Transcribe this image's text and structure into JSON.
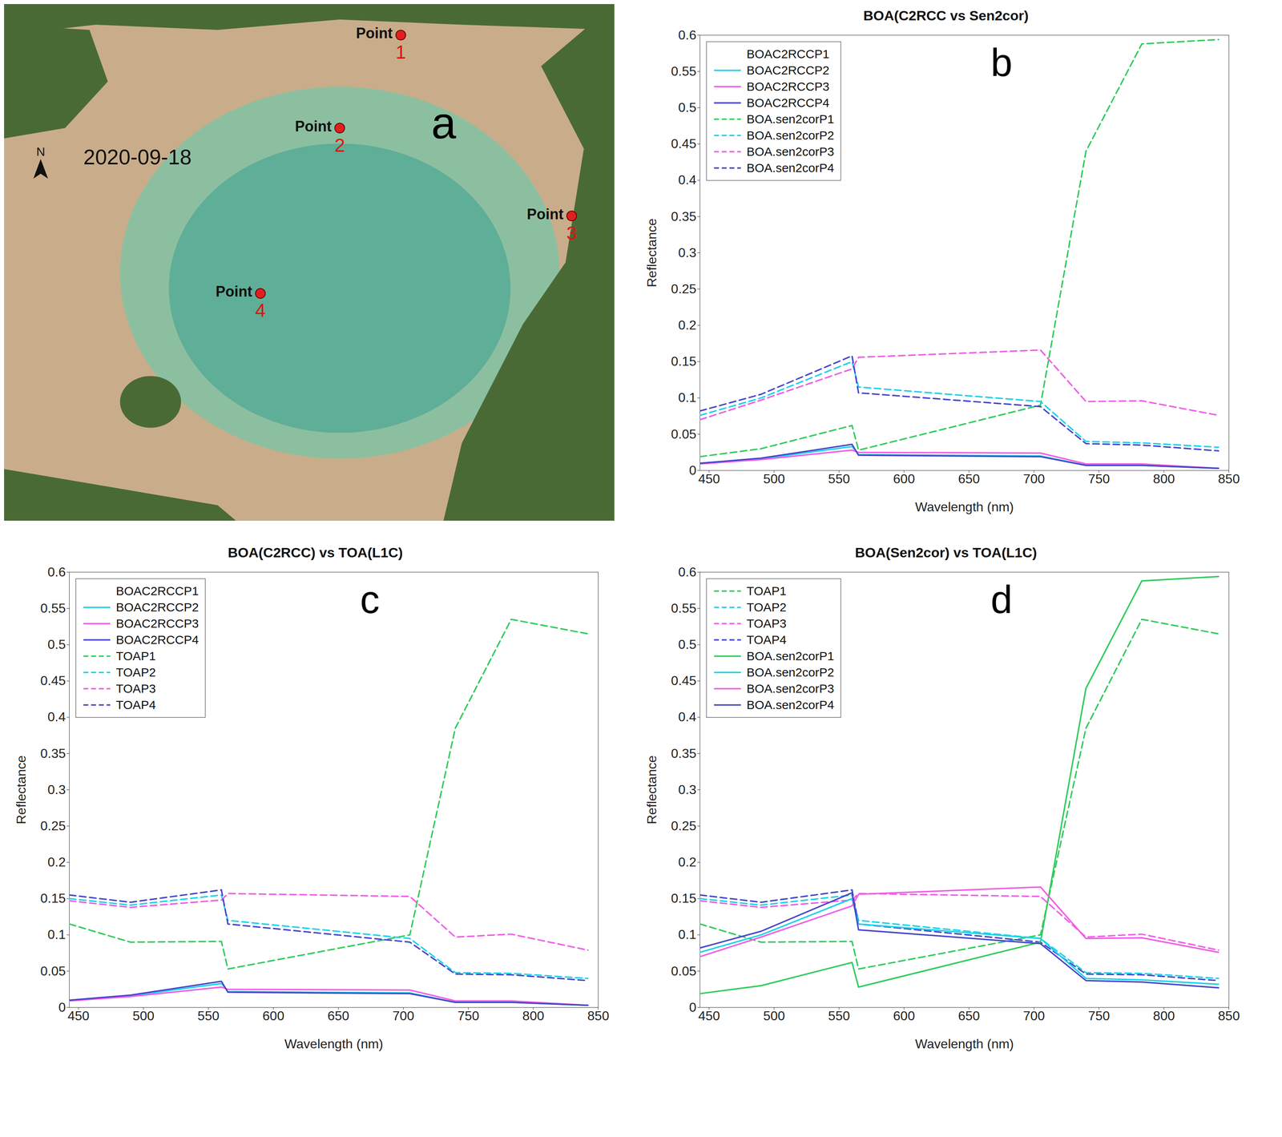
{
  "map": {
    "panel_label": "a",
    "date": "2020-09-18",
    "north": "N",
    "point_label": "Point",
    "points": [
      "1",
      "2",
      "3",
      "4"
    ]
  },
  "chart_data": [
    {
      "type": "line",
      "panel_label": "b",
      "title": "BOA(C2RCC vs Sen2cor)",
      "x_label": "Wavelength (nm)",
      "y_label": "Reflectance",
      "x": [
        443,
        490,
        560,
        565,
        705,
        740,
        783,
        842
      ],
      "xlim": [
        443,
        850
      ],
      "xticks": [
        450,
        500,
        550,
        600,
        650,
        700,
        750,
        800,
        850
      ],
      "ylim": [
        0,
        0.6
      ],
      "yticks": [
        0,
        0.05,
        0.1,
        0.15,
        0.2,
        0.25,
        0.3,
        0.35,
        0.4,
        0.45,
        0.5,
        0.55,
        0.6
      ],
      "grid": false,
      "legend": "upper left",
      "series": [
        {
          "name": "BOAC2RCCP1",
          "color": "#ffffff",
          "line_style": "solid",
          "values": [
            null,
            null,
            null,
            null,
            null,
            null,
            null,
            null
          ]
        },
        {
          "name": "BOAC2RCCP2",
          "color": "#19d3ea",
          "line_style": "solid",
          "values": [
            0.01,
            0.016,
            0.033,
            0.022,
            0.02,
            0.007,
            0.007,
            0.003
          ]
        },
        {
          "name": "BOAC2RCCP3",
          "color": "#f25ce6",
          "line_style": "solid",
          "values": [
            0.009,
            0.015,
            0.028,
            0.025,
            0.024,
            0.009,
            0.009,
            0.003
          ]
        },
        {
          "name": "BOAC2RCCP4",
          "color": "#4646cc",
          "line_style": "solid",
          "values": [
            0.01,
            0.017,
            0.036,
            0.021,
            0.019,
            0.007,
            0.007,
            0.003
          ]
        },
        {
          "name": "BOA.sen2corP1",
          "color": "#2ecc5a",
          "line_style": "dashed",
          "values": [
            0.019,
            0.03,
            0.062,
            0.028,
            0.09,
            0.44,
            0.588,
            0.594
          ]
        },
        {
          "name": "BOA.sen2corP2",
          "color": "#19d3ea",
          "line_style": "dashed",
          "values": [
            0.076,
            0.1,
            0.15,
            0.115,
            0.095,
            0.04,
            0.038,
            0.032
          ]
        },
        {
          "name": "BOA.sen2corP3",
          "color": "#f25ce6",
          "line_style": "dashed",
          "values": [
            0.07,
            0.097,
            0.14,
            0.156,
            0.166,
            0.095,
            0.096,
            0.076
          ]
        },
        {
          "name": "BOA.sen2corP4",
          "color": "#4646cc",
          "line_style": "dashed",
          "values": [
            0.082,
            0.105,
            0.158,
            0.107,
            0.088,
            0.037,
            0.035,
            0.027
          ]
        }
      ]
    },
    {
      "type": "line",
      "panel_label": "c",
      "title": "BOA(C2RCC) vs TOA(L1C)",
      "x_label": "Wavelength (nm)",
      "y_label": "Reflectance",
      "x": [
        443,
        490,
        560,
        565,
        705,
        740,
        783,
        842
      ],
      "xlim": [
        443,
        850
      ],
      "xticks": [
        450,
        500,
        550,
        600,
        650,
        700,
        750,
        800,
        850
      ],
      "ylim": [
        0,
        0.6
      ],
      "yticks": [
        0,
        0.05,
        0.1,
        0.15,
        0.2,
        0.25,
        0.3,
        0.35,
        0.4,
        0.45,
        0.5,
        0.55,
        0.6
      ],
      "grid": false,
      "legend": "upper left",
      "series": [
        {
          "name": "BOAC2RCCP1",
          "color": "#ffffff",
          "line_style": "solid",
          "values": [
            null,
            null,
            null,
            null,
            null,
            null,
            null,
            null
          ]
        },
        {
          "name": "BOAC2RCCP2",
          "color": "#19d3ea",
          "line_style": "solid",
          "values": [
            0.01,
            0.016,
            0.033,
            0.022,
            0.02,
            0.007,
            0.007,
            0.003
          ]
        },
        {
          "name": "BOAC2RCCP3",
          "color": "#f25ce6",
          "line_style": "solid",
          "values": [
            0.009,
            0.015,
            0.028,
            0.025,
            0.024,
            0.009,
            0.009,
            0.003
          ]
        },
        {
          "name": "BOAC2RCCP4",
          "color": "#4646cc",
          "line_style": "solid",
          "values": [
            0.01,
            0.017,
            0.036,
            0.021,
            0.019,
            0.007,
            0.007,
            0.003
          ]
        },
        {
          "name": "TOAP1",
          "color": "#2ecc5a",
          "line_style": "dashed",
          "values": [
            0.115,
            0.09,
            0.091,
            0.053,
            0.1,
            0.385,
            0.535,
            0.515
          ]
        },
        {
          "name": "TOAP2",
          "color": "#19d3ea",
          "line_style": "dashed",
          "values": [
            0.15,
            0.141,
            0.155,
            0.12,
            0.095,
            0.048,
            0.047,
            0.04
          ]
        },
        {
          "name": "TOAP3",
          "color": "#f25ce6",
          "line_style": "dashed",
          "values": [
            0.147,
            0.138,
            0.148,
            0.157,
            0.153,
            0.097,
            0.101,
            0.079
          ]
        },
        {
          "name": "TOAP4",
          "color": "#4646cc",
          "line_style": "dashed",
          "values": [
            0.155,
            0.145,
            0.162,
            0.115,
            0.09,
            0.046,
            0.045,
            0.037
          ]
        }
      ]
    },
    {
      "type": "line",
      "panel_label": "d",
      "title": "BOA(Sen2cor) vs TOA(L1C)",
      "x_label": "Wavelength (nm)",
      "y_label": "Reflectance",
      "x": [
        443,
        490,
        560,
        565,
        705,
        740,
        783,
        842
      ],
      "xlim": [
        443,
        850
      ],
      "xticks": [
        450,
        500,
        550,
        600,
        650,
        700,
        750,
        800,
        850
      ],
      "ylim": [
        0,
        0.6
      ],
      "yticks": [
        0,
        0.05,
        0.1,
        0.15,
        0.2,
        0.25,
        0.3,
        0.35,
        0.4,
        0.45,
        0.5,
        0.55,
        0.6
      ],
      "grid": false,
      "legend": "upper left",
      "series": [
        {
          "name": "TOAP1",
          "color": "#2ecc5a",
          "line_style": "dashed",
          "values": [
            0.115,
            0.09,
            0.091,
            0.053,
            0.1,
            0.385,
            0.535,
            0.515
          ]
        },
        {
          "name": "TOAP2",
          "color": "#19d3ea",
          "line_style": "dashed",
          "values": [
            0.15,
            0.141,
            0.155,
            0.12,
            0.095,
            0.048,
            0.047,
            0.04
          ]
        },
        {
          "name": "TOAP3",
          "color": "#f25ce6",
          "line_style": "dashed",
          "values": [
            0.147,
            0.138,
            0.148,
            0.157,
            0.153,
            0.097,
            0.101,
            0.079
          ]
        },
        {
          "name": "TOAP4",
          "color": "#4646cc",
          "line_style": "dashed",
          "values": [
            0.155,
            0.145,
            0.162,
            0.115,
            0.09,
            0.046,
            0.045,
            0.037
          ]
        },
        {
          "name": "BOA.sen2corP1",
          "color": "#2ecc5a",
          "line_style": "solid",
          "values": [
            0.019,
            0.03,
            0.062,
            0.028,
            0.09,
            0.44,
            0.588,
            0.594
          ]
        },
        {
          "name": "BOA.sen2corP2",
          "color": "#19d3ea",
          "line_style": "solid",
          "values": [
            0.076,
            0.1,
            0.15,
            0.115,
            0.095,
            0.04,
            0.038,
            0.032
          ]
        },
        {
          "name": "BOA.sen2corP3",
          "color": "#f25ce6",
          "line_style": "solid",
          "values": [
            0.07,
            0.097,
            0.14,
            0.156,
            0.166,
            0.095,
            0.096,
            0.076
          ]
        },
        {
          "name": "BOA.sen2corP4",
          "color": "#4646cc",
          "line_style": "solid",
          "values": [
            0.082,
            0.105,
            0.158,
            0.107,
            0.088,
            0.037,
            0.035,
            0.027
          ]
        }
      ]
    }
  ]
}
